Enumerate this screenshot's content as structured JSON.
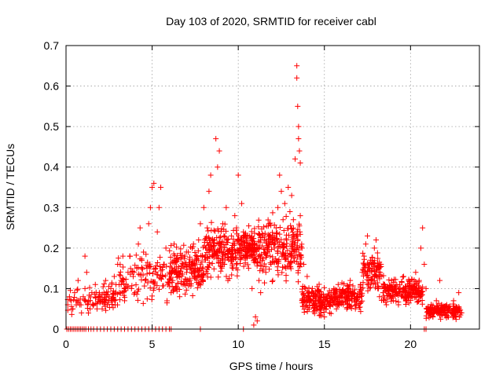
{
  "chart_data": {
    "type": "scatter",
    "title": "Day 103 of 2020, SRMTID for receiver cabl",
    "xlabel": "GPS time / hours",
    "ylabel": "SRMTID / TECUs",
    "xlim": [
      0,
      24
    ],
    "ylim": [
      0,
      0.7
    ],
    "xticks": [
      0,
      5,
      10,
      15,
      20
    ],
    "yticks": [
      0,
      0.1,
      0.2,
      0.3,
      0.4,
      0.5,
      0.6,
      0.7
    ],
    "xtick_labels": [
      "0",
      "5",
      "10",
      "15",
      "20"
    ],
    "ytick_labels": [
      "0",
      "0.1",
      "0.2",
      "0.3",
      "0.4",
      "0.5",
      "0.6",
      "0.7"
    ],
    "grid": true,
    "marker": "+",
    "series": [
      {
        "name": "SRMTID",
        "color": "#ff0000",
        "points": [
          [
            0.05,
            0.0
          ],
          [
            0.15,
            0.0
          ],
          [
            0.25,
            0.0
          ],
          [
            0.35,
            0.0
          ],
          [
            0.45,
            0.0
          ],
          [
            0.55,
            0.0
          ],
          [
            0.65,
            0.0
          ],
          [
            0.75,
            0.0
          ],
          [
            0.85,
            0.0
          ],
          [
            0.95,
            0.0
          ],
          [
            1.05,
            0.0
          ],
          [
            1.15,
            0.0
          ],
          [
            1.3,
            0.0
          ],
          [
            1.45,
            0.0
          ],
          [
            1.6,
            0.0
          ],
          [
            1.8,
            0.0
          ],
          [
            2.0,
            0.0
          ],
          [
            2.2,
            0.0
          ],
          [
            2.4,
            0.0
          ],
          [
            2.6,
            0.0
          ],
          [
            2.8,
            0.0
          ],
          [
            3.0,
            0.0
          ],
          [
            3.2,
            0.0
          ],
          [
            3.4,
            0.0
          ],
          [
            3.6,
            0.0
          ],
          [
            3.8,
            0.0
          ],
          [
            4.0,
            0.0
          ],
          [
            4.2,
            0.0
          ],
          [
            4.4,
            0.0
          ],
          [
            4.6,
            0.0
          ],
          [
            4.8,
            0.0
          ],
          [
            5.0,
            0.0
          ],
          [
            5.2,
            0.0
          ],
          [
            5.4,
            0.0
          ],
          [
            5.6,
            0.0
          ],
          [
            5.8,
            0.0
          ],
          [
            6.0,
            0.0
          ],
          [
            6.1,
            0.0
          ],
          [
            7.8,
            0.0
          ],
          [
            10.3,
            0.0
          ],
          [
            20.8,
            0.0
          ],
          [
            20.9,
            0.0
          ],
          [
            0.1,
            0.06
          ],
          [
            0.2,
            0.08
          ],
          [
            0.3,
            0.07
          ],
          [
            0.4,
            0.05
          ],
          [
            0.5,
            0.09
          ],
          [
            0.6,
            0.07
          ],
          [
            0.7,
            0.12
          ],
          [
            0.8,
            0.06
          ],
          [
            0.9,
            0.04
          ],
          [
            1.0,
            0.08
          ],
          [
            1.1,
            0.1
          ],
          [
            1.2,
            0.14
          ],
          [
            1.1,
            0.18
          ],
          [
            1.3,
            0.07
          ],
          [
            1.4,
            0.05
          ],
          [
            1.5,
            0.09
          ],
          [
            1.6,
            0.06
          ],
          [
            1.7,
            0.11
          ],
          [
            1.8,
            0.05
          ],
          [
            1.9,
            0.08
          ],
          [
            2.0,
            0.07
          ],
          [
            2.1,
            0.05
          ],
          [
            2.2,
            0.09
          ],
          [
            2.3,
            0.12
          ],
          [
            2.4,
            0.06
          ],
          [
            2.5,
            0.08
          ],
          [
            2.6,
            0.1
          ],
          [
            2.7,
            0.07
          ],
          [
            2.8,
            0.13
          ],
          [
            2.9,
            0.11
          ],
          [
            3.0,
            0.16
          ],
          [
            3.1,
            0.09
          ],
          [
            3.2,
            0.12
          ],
          [
            3.3,
            0.18
          ],
          [
            3.4,
            0.07
          ],
          [
            3.5,
            0.11
          ],
          [
            3.6,
            0.14
          ],
          [
            3.7,
            0.18
          ],
          [
            3.8,
            0.1
          ],
          [
            3.9,
            0.13
          ],
          [
            4.0,
            0.09
          ],
          [
            4.1,
            0.15
          ],
          [
            4.2,
            0.21
          ],
          [
            4.3,
            0.25
          ],
          [
            4.4,
            0.17
          ],
          [
            4.5,
            0.19
          ],
          [
            4.6,
            0.12
          ],
          [
            4.7,
            0.15
          ],
          [
            4.8,
            0.26
          ],
          [
            4.9,
            0.3
          ],
          [
            5.0,
            0.35
          ],
          [
            5.1,
            0.36
          ],
          [
            5.2,
            0.15
          ],
          [
            5.3,
            0.24
          ],
          [
            5.4,
            0.3
          ],
          [
            5.5,
            0.35
          ],
          [
            5.6,
            0.13
          ],
          [
            5.7,
            0.16
          ],
          [
            5.8,
            0.2
          ],
          [
            5.9,
            0.11
          ],
          [
            6.0,
            0.14
          ],
          [
            6.1,
            0.09
          ],
          [
            6.2,
            0.12
          ],
          [
            6.3,
            0.17
          ],
          [
            6.4,
            0.1
          ],
          [
            6.5,
            0.13
          ],
          [
            6.6,
            0.08
          ],
          [
            6.7,
            0.15
          ],
          [
            6.8,
            0.11
          ],
          [
            6.9,
            0.18
          ],
          [
            7.0,
            0.14
          ],
          [
            7.1,
            0.19
          ],
          [
            7.2,
            0.12
          ],
          [
            7.3,
            0.16
          ],
          [
            7.4,
            0.21
          ],
          [
            7.5,
            0.13
          ],
          [
            7.6,
            0.17
          ],
          [
            7.7,
            0.22
          ],
          [
            7.8,
            0.26
          ],
          [
            7.9,
            0.15
          ],
          [
            8.0,
            0.3
          ],
          [
            8.1,
            0.2
          ],
          [
            8.2,
            0.25
          ],
          [
            8.3,
            0.34
          ],
          [
            8.4,
            0.38
          ],
          [
            8.5,
            0.18
          ],
          [
            8.6,
            0.22
          ],
          [
            8.7,
            0.47
          ],
          [
            8.8,
            0.4
          ],
          [
            8.9,
            0.44
          ],
          [
            9.0,
            0.21
          ],
          [
            9.1,
            0.26
          ],
          [
            9.2,
            0.16
          ],
          [
            9.3,
            0.3
          ],
          [
            9.4,
            0.12
          ],
          [
            9.5,
            0.19
          ],
          [
            9.6,
            0.23
          ],
          [
            9.7,
            0.15
          ],
          [
            9.8,
            0.28
          ],
          [
            9.9,
            0.25
          ],
          [
            10.0,
            0.38
          ],
          [
            10.1,
            0.2
          ],
          [
            10.2,
            0.31
          ],
          [
            10.3,
            0.24
          ],
          [
            10.4,
            0.18
          ],
          [
            10.5,
            0.22
          ],
          [
            10.6,
            0.15
          ],
          [
            10.7,
            0.2
          ],
          [
            10.8,
            0.1
          ],
          [
            10.9,
            0.01
          ],
          [
            11.0,
            0.03
          ],
          [
            11.1,
            0.02
          ],
          [
            11.2,
            0.12
          ],
          [
            11.3,
            0.09
          ],
          [
            11.4,
            0.17
          ],
          [
            11.5,
            0.22
          ],
          [
            11.6,
            0.14
          ],
          [
            11.7,
            0.19
          ],
          [
            11.8,
            0.26
          ],
          [
            11.9,
            0.16
          ],
          [
            12.0,
            0.12
          ],
          [
            12.1,
            0.2
          ],
          [
            12.2,
            0.25
          ],
          [
            12.3,
            0.3
          ],
          [
            12.4,
            0.38
          ],
          [
            12.5,
            0.34
          ],
          [
            12.6,
            0.27
          ],
          [
            12.7,
            0.31
          ],
          [
            12.8,
            0.22
          ],
          [
            12.9,
            0.35
          ],
          [
            13.0,
            0.29
          ],
          [
            13.1,
            0.33
          ],
          [
            13.2,
            0.27
          ],
          [
            13.3,
            0.42
          ],
          [
            13.4,
            0.65
          ],
          [
            13.4,
            0.62
          ],
          [
            13.45,
            0.55
          ],
          [
            13.5,
            0.5
          ],
          [
            13.5,
            0.47
          ],
          [
            13.55,
            0.44
          ],
          [
            13.6,
            0.41
          ],
          [
            13.6,
            0.28
          ],
          [
            13.7,
            0.2
          ],
          [
            13.8,
            0.16
          ],
          [
            13.9,
            0.1
          ],
          [
            14.0,
            0.13
          ],
          [
            14.1,
            0.09
          ],
          [
            14.2,
            0.07
          ],
          [
            14.3,
            0.1
          ],
          [
            14.4,
            0.06
          ],
          [
            14.5,
            0.08
          ],
          [
            14.6,
            0.05
          ],
          [
            14.7,
            0.07
          ],
          [
            14.8,
            0.04
          ],
          [
            14.9,
            0.06
          ],
          [
            15.0,
            0.03
          ],
          [
            15.1,
            0.05
          ],
          [
            15.2,
            0.07
          ],
          [
            15.3,
            0.04
          ],
          [
            15.4,
            0.08
          ],
          [
            15.5,
            0.06
          ],
          [
            15.6,
            0.09
          ],
          [
            15.7,
            0.05
          ],
          [
            15.8,
            0.11
          ],
          [
            15.9,
            0.07
          ],
          [
            16.0,
            0.09
          ],
          [
            16.1,
            0.06
          ],
          [
            16.2,
            0.08
          ],
          [
            16.3,
            0.05
          ],
          [
            16.4,
            0.1
          ],
          [
            16.5,
            0.12
          ],
          [
            16.6,
            0.07
          ],
          [
            16.7,
            0.09
          ],
          [
            16.8,
            0.05
          ],
          [
            16.9,
            0.08
          ],
          [
            17.0,
            0.06
          ],
          [
            17.1,
            0.11
          ],
          [
            17.2,
            0.14
          ],
          [
            17.3,
            0.18
          ],
          [
            17.4,
            0.21
          ],
          [
            17.5,
            0.23
          ],
          [
            17.6,
            0.16
          ],
          [
            17.7,
            0.12
          ],
          [
            17.8,
            0.15
          ],
          [
            17.9,
            0.2
          ],
          [
            18.0,
            0.22
          ],
          [
            18.1,
            0.1
          ],
          [
            18.2,
            0.08
          ],
          [
            18.3,
            0.13
          ],
          [
            18.4,
            0.09
          ],
          [
            18.5,
            0.11
          ],
          [
            18.6,
            0.06
          ],
          [
            18.7,
            0.1
          ],
          [
            18.8,
            0.08
          ],
          [
            18.9,
            0.12
          ],
          [
            19.0,
            0.07
          ],
          [
            19.1,
            0.09
          ],
          [
            19.2,
            0.11
          ],
          [
            19.3,
            0.06
          ],
          [
            19.4,
            0.1
          ],
          [
            19.5,
            0.08
          ],
          [
            19.6,
            0.13
          ],
          [
            19.7,
            0.09
          ],
          [
            19.8,
            0.07
          ],
          [
            19.9,
            0.12
          ],
          [
            20.0,
            0.1
          ],
          [
            20.1,
            0.08
          ],
          [
            20.2,
            0.11
          ],
          [
            20.3,
            0.14
          ],
          [
            20.4,
            0.09
          ],
          [
            20.5,
            0.12
          ],
          [
            20.6,
            0.2
          ],
          [
            20.7,
            0.25
          ],
          [
            20.8,
            0.16
          ],
          [
            20.9,
            0.1
          ],
          [
            21.0,
            0.05
          ],
          [
            21.1,
            0.04
          ],
          [
            21.2,
            0.06
          ],
          [
            21.3,
            0.03
          ],
          [
            21.4,
            0.05
          ],
          [
            21.5,
            0.07
          ],
          [
            21.6,
            0.04
          ],
          [
            21.7,
            0.12
          ],
          [
            21.8,
            0.06
          ],
          [
            21.9,
            0.05
          ],
          [
            22.0,
            0.04
          ],
          [
            22.1,
            0.06
          ],
          [
            22.2,
            0.03
          ],
          [
            22.3,
            0.05
          ],
          [
            22.4,
            0.04
          ],
          [
            22.5,
            0.07
          ],
          [
            22.6,
            0.03
          ],
          [
            22.7,
            0.05
          ],
          [
            22.8,
            0.09
          ],
          [
            22.9,
            0.04
          ]
        ],
        "bands": [
          {
            "x_start": 0.1,
            "x_end": 3.0,
            "y_min": 0.03,
            "y_max": 0.12,
            "count": 90
          },
          {
            "x_start": 3.0,
            "x_end": 6.0,
            "y_min": 0.05,
            "y_max": 0.2,
            "count": 110
          },
          {
            "x_start": 6.0,
            "x_end": 8.0,
            "y_min": 0.07,
            "y_max": 0.22,
            "count": 180
          },
          {
            "x_start": 8.0,
            "x_end": 10.0,
            "y_min": 0.1,
            "y_max": 0.28,
            "count": 190
          },
          {
            "x_start": 10.0,
            "x_end": 11.0,
            "y_min": 0.14,
            "y_max": 0.26,
            "count": 120
          },
          {
            "x_start": 11.0,
            "x_end": 13.7,
            "y_min": 0.1,
            "y_max": 0.3,
            "count": 240
          },
          {
            "x_start": 13.7,
            "x_end": 15.5,
            "y_min": 0.02,
            "y_max": 0.12,
            "count": 170
          },
          {
            "x_start": 15.5,
            "x_end": 17.2,
            "y_min": 0.04,
            "y_max": 0.12,
            "count": 140
          },
          {
            "x_start": 17.2,
            "x_end": 18.3,
            "y_min": 0.08,
            "y_max": 0.2,
            "count": 90
          },
          {
            "x_start": 18.3,
            "x_end": 20.7,
            "y_min": 0.05,
            "y_max": 0.14,
            "count": 190
          },
          {
            "x_start": 20.9,
            "x_end": 23.0,
            "y_min": 0.02,
            "y_max": 0.07,
            "count": 150
          }
        ]
      }
    ]
  }
}
